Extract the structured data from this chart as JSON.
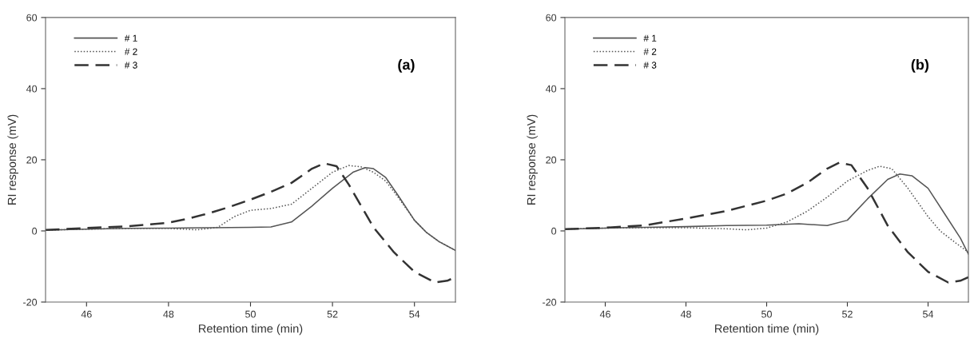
{
  "chart_data": [
    {
      "type": "line",
      "xlabel": "Retention time (min)",
      "ylabel": "RI response (mV)",
      "annotations": [
        "(a)"
      ],
      "xlim": [
        45,
        55
      ],
      "xticks": [
        46,
        48,
        50,
        52,
        54
      ],
      "ylim": [
        -20,
        60
      ],
      "yticks": [
        -20,
        0,
        20,
        40,
        60
      ],
      "grid": false,
      "legend": "top left",
      "marker": "none",
      "series": [
        {
          "name": "# 1",
          "color": "#555555",
          "line_style": "solid",
          "x": [
            45,
            46,
            47,
            48,
            49,
            50,
            50.5,
            51,
            51.5,
            52,
            52.5,
            52.8,
            53,
            53.3,
            53.6,
            54,
            54.3,
            54.6,
            55
          ],
          "values": [
            0.2,
            0.5,
            0.7,
            0.8,
            0.9,
            1,
            1.1,
            2.5,
            7,
            12,
            16.5,
            17.8,
            17.5,
            15,
            10,
            3,
            -0.5,
            -3,
            -5.5
          ]
        },
        {
          "name": "# 2",
          "color": "#555555",
          "line_style": "dotted",
          "x": [
            45,
            46,
            47,
            48,
            48.7,
            49.2,
            49.6,
            50,
            50.5,
            51,
            51.5,
            52,
            52.4,
            52.7,
            53,
            53.3,
            53.6,
            54,
            54.3,
            54.6,
            55
          ],
          "values": [
            0.2,
            0.5,
            0.7,
            0.7,
            0.3,
            1,
            4,
            5.8,
            6.3,
            7.5,
            12,
            16.5,
            18.4,
            18,
            16.5,
            14,
            9.5,
            3,
            -0.5,
            -3,
            -5.5
          ]
        },
        {
          "name": "# 3",
          "color": "#333333",
          "line_style": "dashed",
          "x": [
            45,
            46,
            47,
            48,
            48.5,
            49,
            49.5,
            50,
            50.5,
            51,
            51.5,
            51.8,
            52.1,
            52.4,
            52.8,
            53,
            53.5,
            54,
            54.5,
            54.8,
            55
          ],
          "values": [
            0.3,
            0.8,
            1.3,
            2.3,
            3.5,
            5,
            6.8,
            8.8,
            11,
            13.5,
            17.5,
            19,
            18.2,
            13,
            5,
            1,
            -6,
            -11.5,
            -14.5,
            -14,
            -13
          ]
        }
      ]
    },
    {
      "type": "line",
      "xlabel": "Retention time (min)",
      "ylabel": "RI response (mV)",
      "annotations": [
        "(b)"
      ],
      "xlim": [
        45,
        55
      ],
      "xticks": [
        46,
        48,
        50,
        52,
        54
      ],
      "ylim": [
        -20,
        60
      ],
      "yticks": [
        -20,
        0,
        20,
        40,
        60
      ],
      "grid": false,
      "legend": "top left",
      "marker": "none",
      "series": [
        {
          "name": "# 1",
          "color": "#555555",
          "line_style": "solid",
          "x": [
            45,
            46,
            47,
            48,
            49,
            50,
            50.8,
            51.5,
            52,
            52.5,
            53,
            53.3,
            53.6,
            54,
            54.4,
            54.8,
            55
          ],
          "values": [
            0.5,
            0.8,
            1,
            1.2,
            1.5,
            1.6,
            2,
            1.5,
            3,
            9,
            14.5,
            16,
            15.5,
            12,
            5,
            -2,
            -6.5
          ]
        },
        {
          "name": "# 2",
          "color": "#555555",
          "line_style": "dotted",
          "x": [
            45,
            46,
            47,
            48,
            49,
            49.5,
            50,
            50.5,
            51,
            51.5,
            52,
            52.5,
            52.8,
            53.1,
            53.5,
            54,
            54.3,
            54.7,
            55
          ],
          "values": [
            0.5,
            0.8,
            0.9,
            0.9,
            0.6,
            0.3,
            0.8,
            2.5,
            5.5,
            9.5,
            14,
            17,
            18.2,
            17.5,
            12,
            4,
            0,
            -3.5,
            -6
          ]
        },
        {
          "name": "# 3",
          "color": "#333333",
          "line_style": "dashed",
          "x": [
            45,
            46,
            47,
            48,
            49,
            50,
            50.5,
            51,
            51.5,
            51.8,
            52.1,
            52.5,
            53,
            53.5,
            54,
            54.5,
            54.8,
            55
          ],
          "values": [
            0.5,
            0.9,
            1.6,
            3.5,
            5.6,
            8.5,
            10.5,
            13.5,
            17.5,
            19.2,
            18.5,
            12,
            1.5,
            -6,
            -11.5,
            -14.5,
            -14,
            -13
          ]
        }
      ]
    }
  ]
}
